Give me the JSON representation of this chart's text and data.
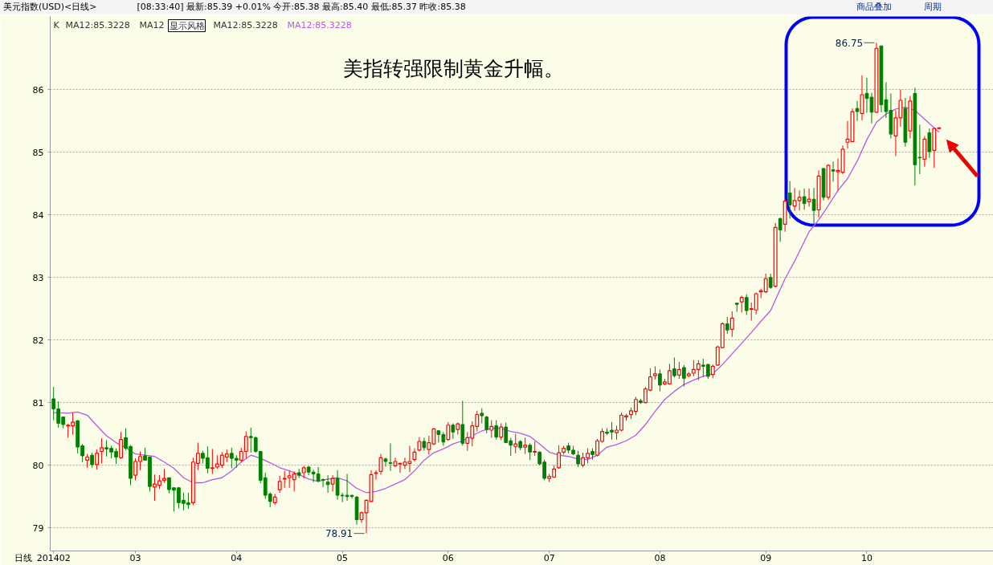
{
  "chart_data": {
    "type": "candlestick",
    "title": "美元指数(USD)<日线>",
    "subtitle": "[08:33:40] 最新:85.39 +0.01% 今开:85.38 最高:85.40 最低:85.37 昨收:85.38",
    "xlabel": "日线",
    "annotations": [
      "K",
      "MA12:85.3228",
      "MA12",
      "显示风格",
      "MA12:85.3228",
      "商品叠加",
      "周期",
      "美指转强限制黄金升幅。",
      "86.75",
      "78.91"
    ],
    "categories": [
      "201402",
      null,
      null,
      null,
      null,
      null,
      null,
      null,
      null,
      null,
      null,
      null,
      null,
      null,
      null,
      null,
      null,
      "03",
      null,
      null,
      null,
      null,
      null,
      null,
      null,
      null,
      null,
      null,
      null,
      null,
      null,
      null,
      null,
      null,
      null,
      null,
      null,
      null,
      "04",
      null,
      null,
      null,
      null,
      null,
      null,
      null,
      null,
      null,
      null,
      null,
      null,
      null,
      null,
      null,
      null,
      null,
      null,
      null,
      null,
      null,
      "05",
      null,
      null,
      null,
      null,
      null,
      null,
      null,
      null,
      null,
      null,
      null,
      null,
      null,
      null,
      null,
      null,
      null,
      null,
      null,
      null,
      null,
      "06",
      null,
      null,
      null,
      null,
      null,
      null,
      null,
      null,
      null,
      null,
      null,
      null,
      null,
      null,
      null,
      null,
      null,
      null,
      null,
      null,
      "07",
      null,
      null,
      null,
      null,
      null,
      null,
      null,
      null,
      null,
      null,
      null,
      null,
      null,
      null,
      null,
      null,
      null,
      null,
      null,
      null,
      null,
      null,
      "08",
      null,
      null,
      null,
      null,
      null,
      null,
      null,
      null,
      null,
      null,
      null,
      null,
      null,
      null,
      null,
      null,
      null,
      null,
      null,
      null,
      null,
      "09",
      null,
      null,
      null,
      null,
      null,
      null,
      null,
      null,
      null,
      null,
      null,
      null,
      null,
      null,
      null,
      null,
      null,
      null,
      null,
      null,
      "10",
      null,
      null,
      null,
      null,
      null,
      null,
      null,
      null,
      null,
      null,
      null,
      null,
      null,
      null,
      null
    ],
    "ohlc": [
      [
        81.06,
        81.25,
        80.72,
        80.9
      ],
      [
        80.9,
        81.02,
        80.6,
        80.67
      ],
      [
        80.77,
        80.77,
        80.59,
        80.65
      ],
      [
        80.63,
        80.66,
        80.44,
        80.64
      ],
      [
        80.63,
        80.84,
        80.49,
        80.69
      ],
      [
        80.71,
        80.72,
        80.19,
        80.29
      ],
      [
        80.31,
        80.34,
        80.05,
        80.15
      ],
      [
        80.08,
        80.18,
        79.96,
        80.13
      ],
      [
        80.16,
        80.2,
        79.96,
        80.01
      ],
      [
        80.01,
        80.25,
        79.93,
        80.19
      ],
      [
        80.22,
        80.43,
        80.03,
        80.28
      ],
      [
        80.28,
        80.4,
        80.14,
        80.26
      ],
      [
        80.27,
        80.31,
        80.11,
        80.21
      ],
      [
        80.22,
        80.27,
        80.02,
        80.13
      ],
      [
        80.12,
        80.53,
        80.1,
        80.41
      ],
      [
        80.44,
        80.59,
        80.24,
        80.27
      ],
      [
        80.3,
        80.32,
        79.68,
        79.79
      ],
      [
        79.84,
        80.11,
        79.76,
        80.06
      ],
      [
        80.06,
        80.22,
        79.92,
        80.14
      ],
      [
        80.15,
        80.28,
        80.08,
        80.08
      ],
      [
        80.13,
        80.13,
        79.58,
        79.66
      ],
      [
        79.65,
        79.85,
        79.43,
        79.7
      ],
      [
        79.68,
        79.84,
        79.62,
        79.75
      ],
      [
        79.76,
        79.94,
        79.72,
        79.79
      ],
      [
        79.8,
        79.8,
        79.55,
        79.61
      ],
      [
        79.64,
        79.64,
        79.26,
        79.6
      ],
      [
        79.64,
        79.64,
        79.31,
        79.4
      ],
      [
        79.44,
        79.56,
        79.28,
        79.39
      ],
      [
        79.4,
        79.56,
        79.3,
        79.37
      ],
      [
        79.4,
        80.12,
        79.36,
        80.05
      ],
      [
        80.03,
        80.36,
        79.92,
        80.19
      ],
      [
        80.19,
        80.23,
        80.03,
        80.11
      ],
      [
        80.12,
        80.3,
        79.87,
        79.95
      ],
      [
        79.95,
        80.26,
        79.86,
        79.96
      ],
      [
        79.97,
        80.16,
        79.94,
        80.02
      ],
      [
        80.0,
        80.21,
        79.96,
        80.16
      ],
      [
        80.13,
        80.25,
        80.05,
        80.18
      ],
      [
        80.19,
        80.28,
        79.95,
        80.11
      ],
      [
        80.11,
        80.16,
        79.96,
        80.08
      ],
      [
        80.08,
        80.28,
        80.05,
        80.22
      ],
      [
        80.22,
        80.54,
        80.11,
        80.46
      ],
      [
        80.46,
        80.6,
        80.2,
        80.44
      ],
      [
        80.44,
        80.46,
        80.2,
        80.22
      ],
      [
        80.22,
        80.22,
        79.71,
        79.76
      ],
      [
        79.8,
        79.88,
        79.46,
        79.52
      ],
      [
        79.54,
        79.57,
        79.33,
        79.42
      ],
      [
        79.4,
        79.54,
        79.37,
        79.49
      ],
      [
        79.61,
        79.83,
        79.56,
        79.74
      ],
      [
        79.78,
        79.91,
        79.64,
        79.79
      ],
      [
        79.8,
        79.91,
        79.64,
        79.83
      ],
      [
        79.77,
        79.9,
        79.58,
        79.86
      ],
      [
        79.88,
        79.94,
        79.8,
        79.84
      ],
      [
        79.88,
        79.99,
        79.79,
        79.96
      ],
      [
        79.97,
        79.99,
        79.84,
        79.89
      ],
      [
        79.89,
        79.93,
        79.73,
        79.86
      ],
      [
        79.86,
        79.97,
        79.73,
        79.75
      ],
      [
        79.77,
        79.79,
        79.65,
        79.76
      ],
      [
        79.73,
        79.84,
        79.56,
        79.69
      ],
      [
        79.7,
        79.84,
        79.58,
        79.79
      ],
      [
        79.79,
        79.92,
        79.45,
        79.52
      ],
      [
        79.52,
        79.56,
        79.41,
        79.51
      ],
      [
        79.52,
        79.86,
        79.43,
        79.5
      ],
      [
        79.52,
        79.52,
        79.47,
        79.5
      ],
      [
        79.49,
        79.51,
        79.05,
        79.13
      ],
      [
        79.13,
        79.26,
        79.08,
        79.24
      ],
      [
        79.24,
        79.45,
        78.91,
        79.44
      ],
      [
        79.42,
        79.92,
        79.41,
        79.85
      ],
      [
        79.87,
        79.92,
        79.77,
        79.88
      ],
      [
        79.9,
        80.18,
        79.85,
        80.12
      ],
      [
        80.1,
        80.12,
        79.98,
        80.06
      ],
      [
        80.04,
        80.35,
        79.91,
        80.03
      ],
      [
        79.99,
        80.12,
        79.97,
        80.06
      ],
      [
        80.02,
        80.04,
        79.88,
        80.03
      ],
      [
        80.0,
        80.12,
        79.94,
        80.05
      ],
      [
        80.03,
        80.31,
        79.89,
        80.06
      ],
      [
        80.09,
        80.27,
        80.06,
        80.21
      ],
      [
        80.24,
        80.45,
        80.22,
        80.38
      ],
      [
        80.38,
        80.44,
        80.23,
        80.28
      ],
      [
        80.25,
        80.47,
        80.17,
        80.36
      ],
      [
        80.34,
        80.59,
        80.32,
        80.58
      ],
      [
        80.55,
        80.56,
        80.36,
        80.49
      ],
      [
        80.49,
        80.53,
        80.31,
        80.37
      ],
      [
        80.41,
        80.69,
        80.39,
        80.64
      ],
      [
        80.64,
        80.67,
        80.42,
        80.53
      ],
      [
        80.57,
        80.68,
        80.49,
        80.66
      ],
      [
        80.65,
        81.03,
        80.31,
        80.35
      ],
      [
        80.35,
        80.53,
        80.23,
        80.44
      ],
      [
        80.43,
        80.7,
        80.3,
        80.63
      ],
      [
        80.62,
        80.87,
        80.54,
        80.81
      ],
      [
        80.83,
        80.91,
        80.67,
        80.79
      ],
      [
        80.77,
        80.79,
        80.51,
        80.57
      ],
      [
        80.56,
        80.72,
        80.44,
        80.62
      ],
      [
        80.63,
        80.72,
        80.41,
        80.45
      ],
      [
        80.45,
        80.67,
        80.4,
        80.61
      ],
      [
        80.61,
        80.68,
        80.36,
        80.36
      ],
      [
        80.39,
        80.44,
        80.15,
        80.32
      ],
      [
        80.3,
        80.5,
        80.19,
        80.34
      ],
      [
        80.38,
        80.4,
        80.24,
        80.28
      ],
      [
        80.29,
        80.44,
        80.18,
        80.32
      ],
      [
        80.32,
        80.35,
        80.08,
        80.21
      ],
      [
        80.21,
        80.38,
        80.15,
        80.22
      ],
      [
        80.21,
        80.22,
        80.0,
        80.02
      ],
      [
        80.05,
        80.09,
        79.76,
        79.79
      ],
      [
        79.79,
        79.86,
        79.73,
        79.82
      ],
      [
        79.81,
        80.0,
        79.8,
        79.94
      ],
      [
        79.96,
        80.32,
        79.94,
        80.2
      ],
      [
        80.21,
        80.31,
        80.17,
        80.27
      ],
      [
        80.31,
        80.36,
        80.19,
        80.24
      ],
      [
        80.24,
        80.31,
        80.16,
        80.18
      ],
      [
        80.16,
        80.23,
        79.97,
        80.02
      ],
      [
        80.0,
        80.2,
        79.97,
        80.12
      ],
      [
        80.12,
        80.27,
        80.03,
        80.19
      ],
      [
        80.22,
        80.27,
        80.09,
        80.17
      ],
      [
        80.16,
        80.42,
        80.14,
        80.39
      ],
      [
        80.38,
        80.59,
        80.36,
        80.54
      ],
      [
        80.53,
        80.59,
        80.48,
        80.51
      ],
      [
        80.56,
        80.69,
        80.41,
        80.53
      ],
      [
        80.52,
        80.63,
        80.41,
        80.56
      ],
      [
        80.56,
        80.84,
        80.54,
        80.8
      ],
      [
        80.77,
        80.82,
        80.71,
        80.79
      ],
      [
        80.81,
        80.92,
        80.74,
        80.87
      ],
      [
        80.86,
        81.09,
        80.8,
        81.05
      ],
      [
        81.03,
        81.06,
        80.98,
        81.0
      ],
      [
        81.0,
        81.25,
        80.99,
        81.22
      ],
      [
        81.2,
        81.55,
        81.18,
        81.41
      ],
      [
        81.43,
        81.58,
        81.37,
        81.46
      ],
      [
        81.46,
        81.53,
        81.18,
        81.28
      ],
      [
        81.3,
        81.38,
        81.28,
        81.33
      ],
      [
        81.3,
        81.62,
        81.29,
        81.51
      ],
      [
        81.54,
        81.72,
        81.4,
        81.43
      ],
      [
        81.44,
        81.65,
        81.38,
        81.53
      ],
      [
        81.56,
        81.6,
        81.26,
        81.39
      ],
      [
        81.43,
        81.49,
        81.41,
        81.46
      ],
      [
        81.47,
        81.68,
        81.42,
        81.53
      ],
      [
        81.53,
        81.68,
        81.36,
        81.62
      ],
      [
        81.6,
        81.7,
        81.41,
        81.58
      ],
      [
        81.61,
        81.62,
        81.38,
        81.42
      ],
      [
        81.45,
        81.61,
        81.39,
        81.58
      ],
      [
        81.6,
        81.91,
        81.59,
        81.89
      ],
      [
        81.88,
        82.28,
        81.87,
        82.26
      ],
      [
        82.26,
        82.37,
        82.1,
        82.16
      ],
      [
        82.17,
        82.46,
        82.05,
        82.35
      ],
      [
        82.59,
        82.59,
        82.45,
        82.57
      ],
      [
        82.61,
        82.71,
        82.44,
        82.68
      ],
      [
        82.68,
        82.73,
        82.4,
        82.47
      ],
      [
        82.49,
        82.6,
        82.31,
        82.5
      ],
      [
        82.48,
        82.76,
        82.41,
        82.74
      ],
      [
        82.77,
        82.82,
        82.67,
        82.79
      ],
      [
        82.77,
        83.06,
        82.75,
        82.98
      ],
      [
        83.0,
        83.06,
        82.82,
        82.84
      ],
      [
        82.86,
        83.87,
        82.84,
        83.8
      ],
      [
        83.94,
        83.96,
        83.57,
        83.76
      ],
      [
        83.85,
        84.26,
        83.73,
        84.22
      ],
      [
        84.35,
        84.54,
        83.94,
        84.16
      ],
      [
        84.14,
        84.43,
        84.06,
        84.23
      ],
      [
        84.23,
        84.39,
        84.07,
        84.28
      ],
      [
        84.29,
        84.42,
        84.08,
        84.18
      ],
      [
        84.21,
        84.42,
        84.13,
        84.25
      ],
      [
        84.25,
        84.43,
        83.87,
        84.07
      ],
      [
        84.08,
        84.71,
        83.96,
        84.62
      ],
      [
        84.74,
        84.75,
        84.23,
        84.28
      ],
      [
        84.28,
        84.81,
        84.24,
        84.79
      ],
      [
        84.72,
        84.85,
        84.53,
        84.7
      ],
      [
        84.69,
        84.9,
        84.39,
        84.71
      ],
      [
        84.68,
        85.11,
        84.65,
        85.05
      ],
      [
        85.16,
        85.5,
        85.06,
        85.21
      ],
      [
        85.17,
        85.7,
        85.16,
        85.65
      ],
      [
        85.7,
        85.82,
        85.5,
        85.65
      ],
      [
        85.62,
        86.23,
        85.51,
        85.92
      ],
      [
        85.94,
        86.19,
        85.63,
        85.86
      ],
      [
        85.88,
        85.95,
        85.46,
        85.64
      ],
      [
        85.64,
        86.75,
        85.63,
        86.66
      ],
      [
        86.7,
        86.7,
        85.64,
        85.76
      ],
      [
        85.84,
        86.12,
        85.55,
        85.65
      ],
      [
        85.67,
        85.94,
        85.22,
        85.29
      ],
      [
        85.26,
        85.67,
        84.94,
        85.55
      ],
      [
        85.55,
        86.0,
        85.41,
        85.83
      ],
      [
        85.7,
        85.87,
        85.09,
        85.16
      ],
      [
        85.34,
        85.9,
        85.22,
        85.82
      ],
      [
        85.94,
        86.03,
        84.47,
        84.8
      ],
      [
        84.92,
        85.44,
        84.65,
        84.91
      ],
      [
        84.89,
        85.26,
        84.77,
        85.21
      ],
      [
        85.31,
        85.38,
        84.91,
        85.01
      ],
      [
        85.03,
        85.39,
        84.75,
        85.38
      ],
      [
        85.38,
        85.4,
        85.37,
        85.39
      ]
    ],
    "series": [
      {
        "name": "MA12:85.3228",
        "type": "line",
        "color": "#b45ae6",
        "values": [
          80.84,
          null,
          null,
          80.83,
          null,
          80.85,
          null,
          80.8,
          null,
          80.63,
          null,
          80.47,
          null,
          80.36,
          null,
          80.28,
          null,
          80.18,
          null,
          80.16,
          null,
          80.14,
          null,
          80.05,
          null,
          79.95,
          null,
          79.8,
          null,
          79.72,
          null,
          79.72,
          null,
          79.77,
          null,
          79.8,
          null,
          79.91,
          null,
          80.05,
          null,
          80.16,
          null,
          80.11,
          null,
          80.04,
          null,
          79.96,
          null,
          79.91,
          null,
          79.85,
          null,
          79.78,
          null,
          79.74,
          null,
          79.78,
          null,
          79.8,
          null,
          79.75,
          null,
          79.63,
          null,
          79.56,
          null,
          79.58,
          null,
          79.63,
          null,
          79.7,
          null,
          79.77,
          null,
          79.91,
          null,
          80.08,
          null,
          80.2,
          null,
          80.26,
          null,
          80.34,
          null,
          80.39,
          null,
          80.47,
          null,
          80.55,
          null,
          80.59,
          null,
          80.59,
          null,
          80.54,
          null,
          80.51,
          null,
          80.46,
          null,
          80.34,
          null,
          80.21,
          null,
          80.16,
          null,
          80.14,
          null,
          80.1,
          null,
          80.09,
          null,
          80.16,
          null,
          80.29,
          null,
          80.33,
          null,
          80.39,
          null,
          80.48,
          null,
          80.65,
          null,
          80.86,
          null,
          81.05,
          null,
          81.18,
          null,
          81.29,
          null,
          81.36,
          null,
          81.42,
          null,
          81.46,
          null,
          81.61,
          null,
          81.78,
          null,
          81.95,
          null,
          82.12,
          null,
          82.3,
          null,
          82.47,
          null,
          82.81,
          82.98,
          null,
          83.26,
          null,
          null,
          83.73,
          null,
          83.92,
          null,
          84.15,
          null,
          84.39,
          null,
          84.58,
          null,
          84.86,
          null,
          85.2,
          null,
          85.48,
          null,
          85.61,
          null,
          85.69,
          null,
          85.72,
          null,
          85.67,
          null,
          85.53,
          null,
          85.39,
          85.32
        ]
      }
    ],
    "ylim": [
      78.63,
      87.17
    ],
    "yticks": [
      79,
      80,
      81,
      82,
      83,
      84,
      85,
      86
    ],
    "grid": "y"
  }
}
